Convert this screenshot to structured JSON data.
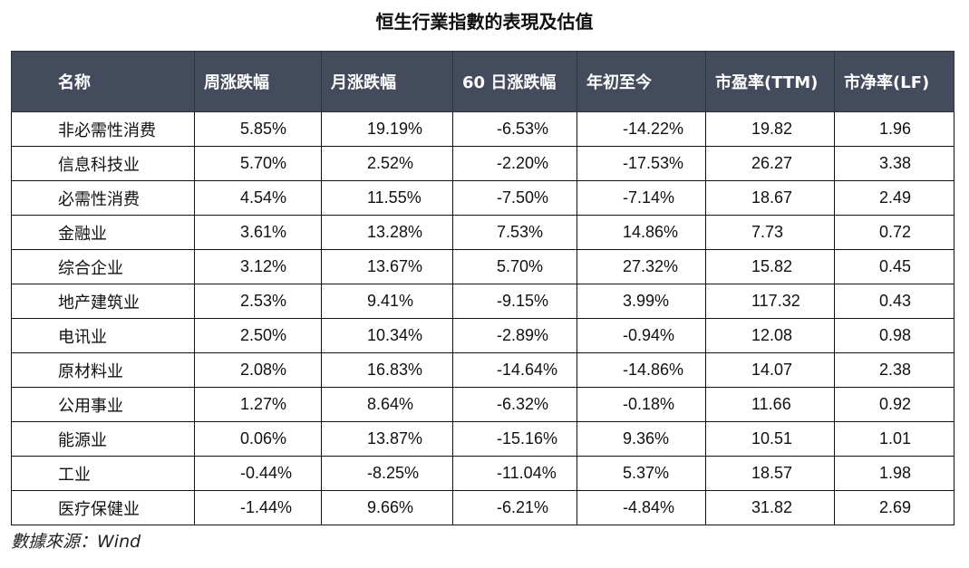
{
  "title": "恒生行業指數的表現及估值",
  "table": {
    "headers": [
      "名称",
      "周涨跌幅",
      "月涨跌幅",
      "60 日涨跌幅",
      "年初至今",
      "市盈率(TTM)",
      "市净率(LF)"
    ],
    "rows": [
      [
        "非必需性消费",
        "5.85%",
        "19.19%",
        "-6.53%",
        "-14.22%",
        "19.82",
        "1.96"
      ],
      [
        "信息科技业",
        "5.70%",
        "2.52%",
        "-2.20%",
        "-17.53%",
        "26.27",
        "3.38"
      ],
      [
        "必需性消费",
        "4.54%",
        "11.55%",
        "-7.50%",
        "-7.14%",
        "18.67",
        "2.49"
      ],
      [
        "金融业",
        "3.61%",
        "13.28%",
        "7.53%",
        "14.86%",
        "7.73",
        "0.72"
      ],
      [
        "综合企业",
        "3.12%",
        "13.67%",
        "5.70%",
        "27.32%",
        "15.82",
        "0.45"
      ],
      [
        "地产建筑业",
        "2.53%",
        "9.41%",
        "-9.15%",
        "3.99%",
        "117.32",
        "0.43"
      ],
      [
        "电讯业",
        "2.50%",
        "10.34%",
        "-2.89%",
        "-0.94%",
        "12.08",
        "0.98"
      ],
      [
        "原材料业",
        "2.08%",
        "16.83%",
        "-14.64%",
        "-14.86%",
        "14.07",
        "2.38"
      ],
      [
        "公用事业",
        "1.27%",
        "8.64%",
        "-6.32%",
        "-0.18%",
        "11.66",
        "0.92"
      ],
      [
        "能源业",
        "0.06%",
        "13.87%",
        "-15.16%",
        "9.36%",
        "10.51",
        "1.01"
      ],
      [
        "工业",
        "-0.44%",
        "-8.25%",
        "-11.04%",
        "5.37%",
        "18.57",
        "1.98"
      ],
      [
        "医疗保健业",
        "-1.44%",
        "9.66%",
        "-6.21%",
        "-4.84%",
        "31.82",
        "2.69"
      ]
    ]
  },
  "source": "數據來源：Wind",
  "colors": {
    "header_bg": "#444b5c",
    "header_text": "#ffffff",
    "border": "#111111"
  }
}
